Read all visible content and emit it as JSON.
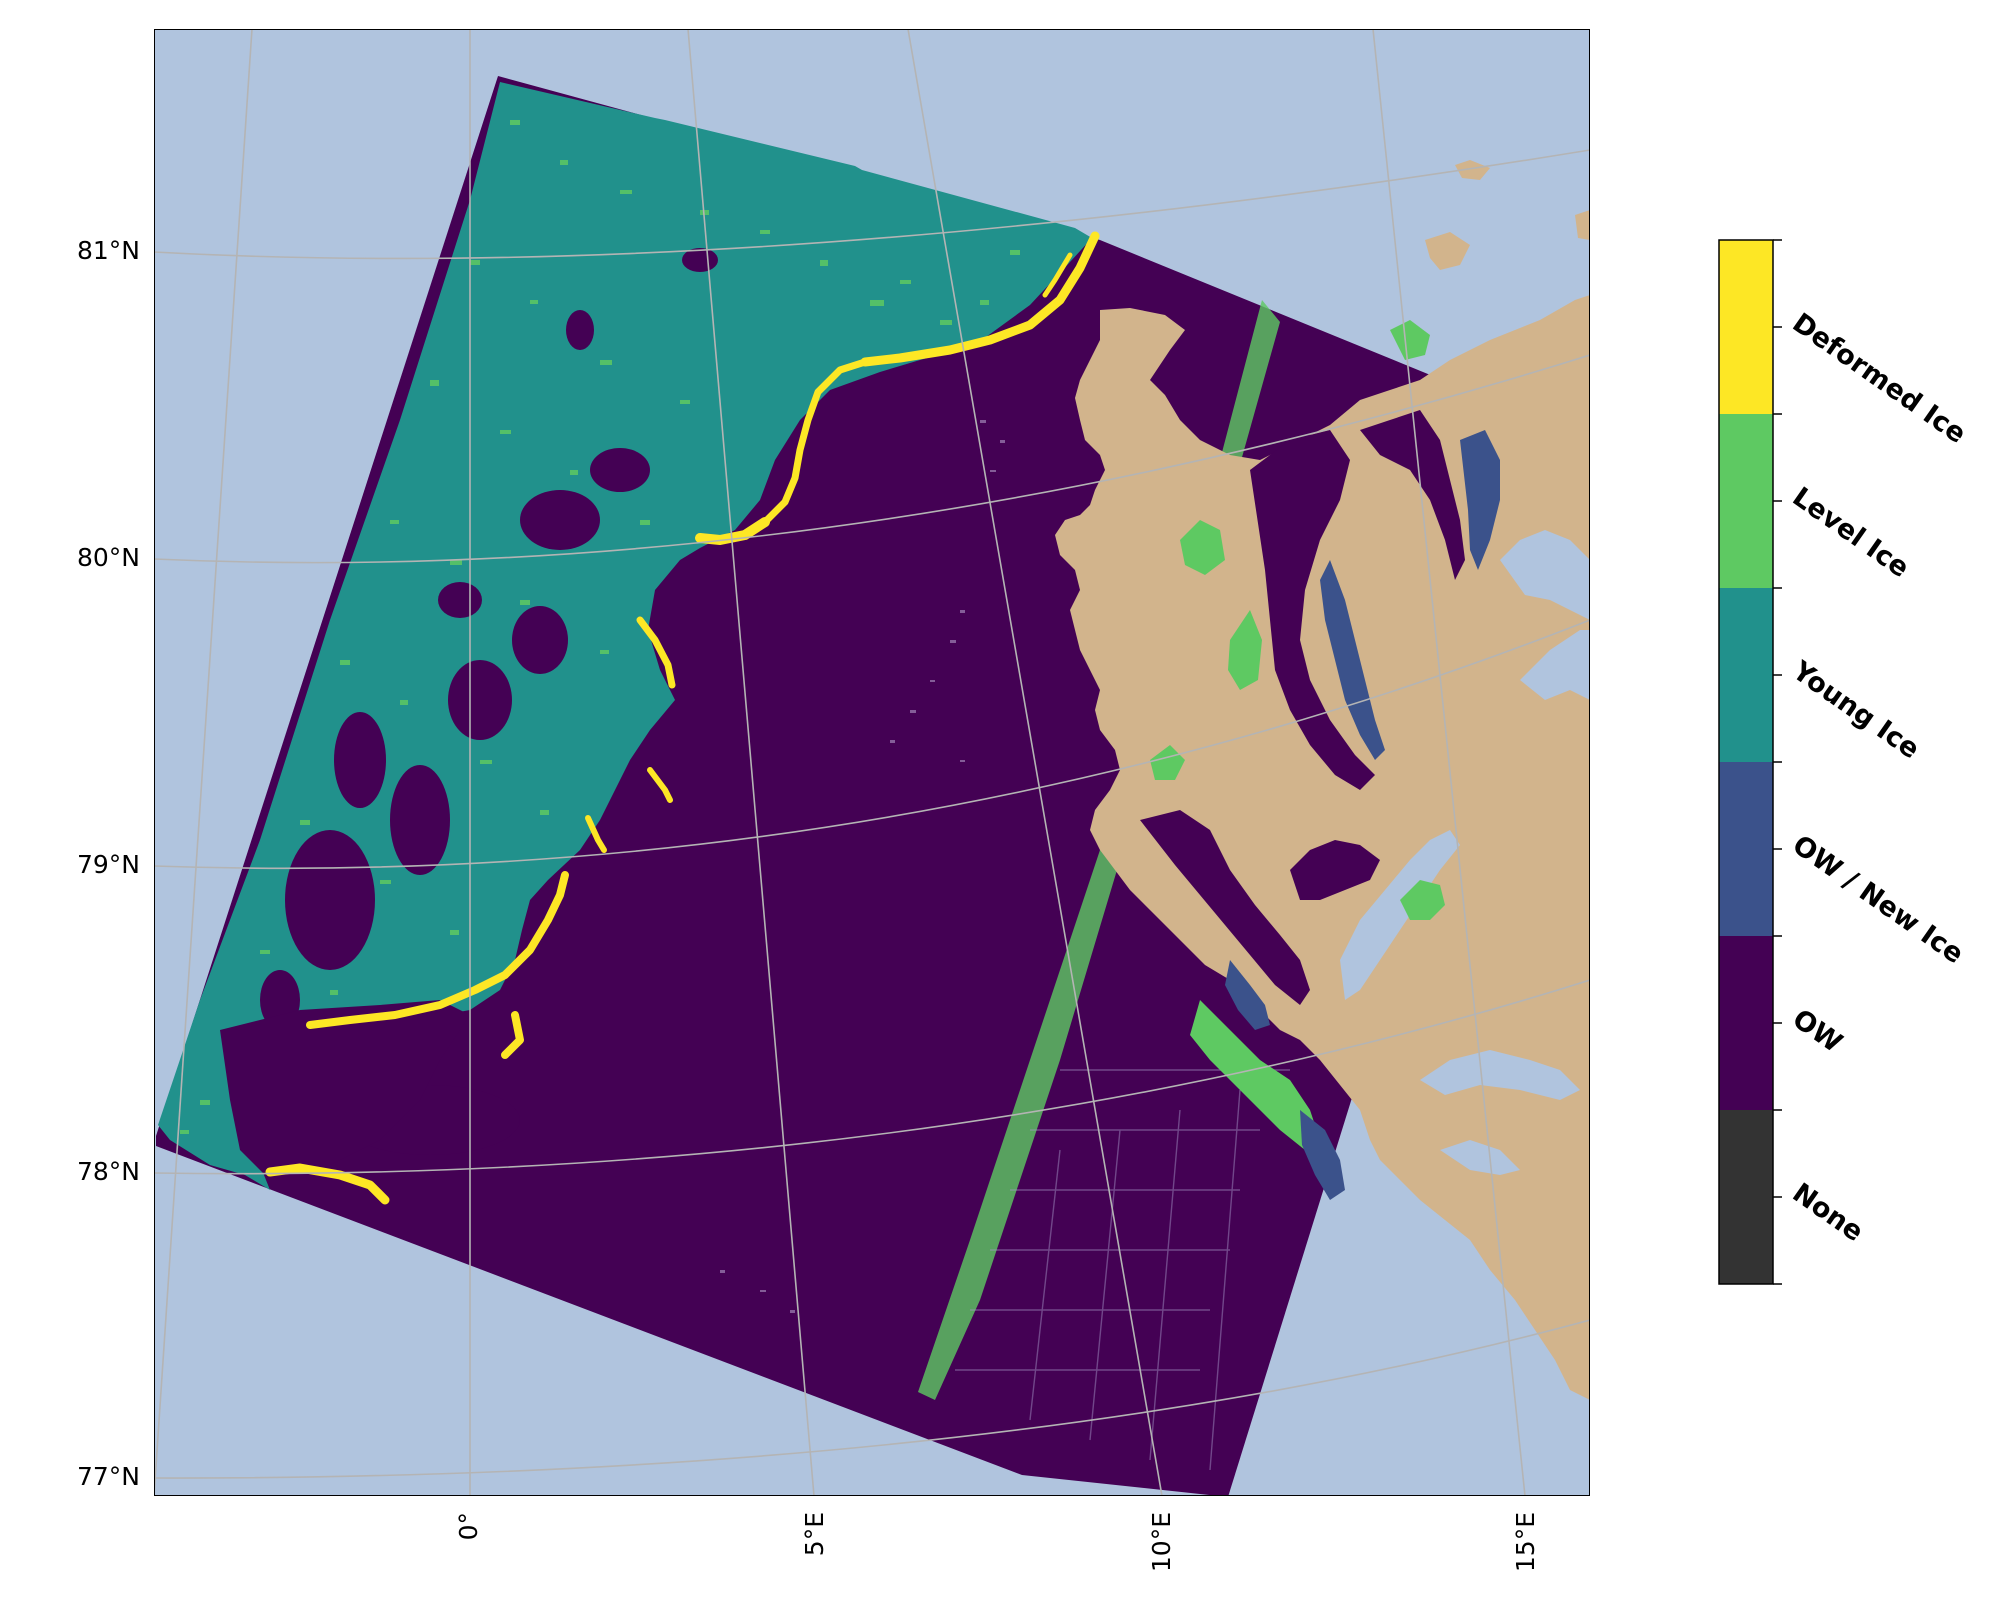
{
  "map": {
    "latitude_labels": [
      "81°N",
      "80°N",
      "79°N",
      "78°N",
      "77°N"
    ],
    "longitude_labels": [
      "0°",
      "5°E",
      "10°E",
      "15°E"
    ],
    "colors": {
      "ocean_background": "#b0c4de",
      "land": "#d2b48c",
      "graticule": "#b4b4b4"
    }
  },
  "legend": {
    "classes": [
      {
        "label": "Deformed Ice",
        "color": "#fde725"
      },
      {
        "label": "Level Ice",
        "color": "#5ec962"
      },
      {
        "label": "Young Ice",
        "color": "#21918c"
      },
      {
        "label": "OW / New Ice",
        "color": "#3b528b"
      },
      {
        "label": "OW",
        "color": "#440154"
      },
      {
        "label": "None",
        "color": "#333333"
      }
    ]
  }
}
